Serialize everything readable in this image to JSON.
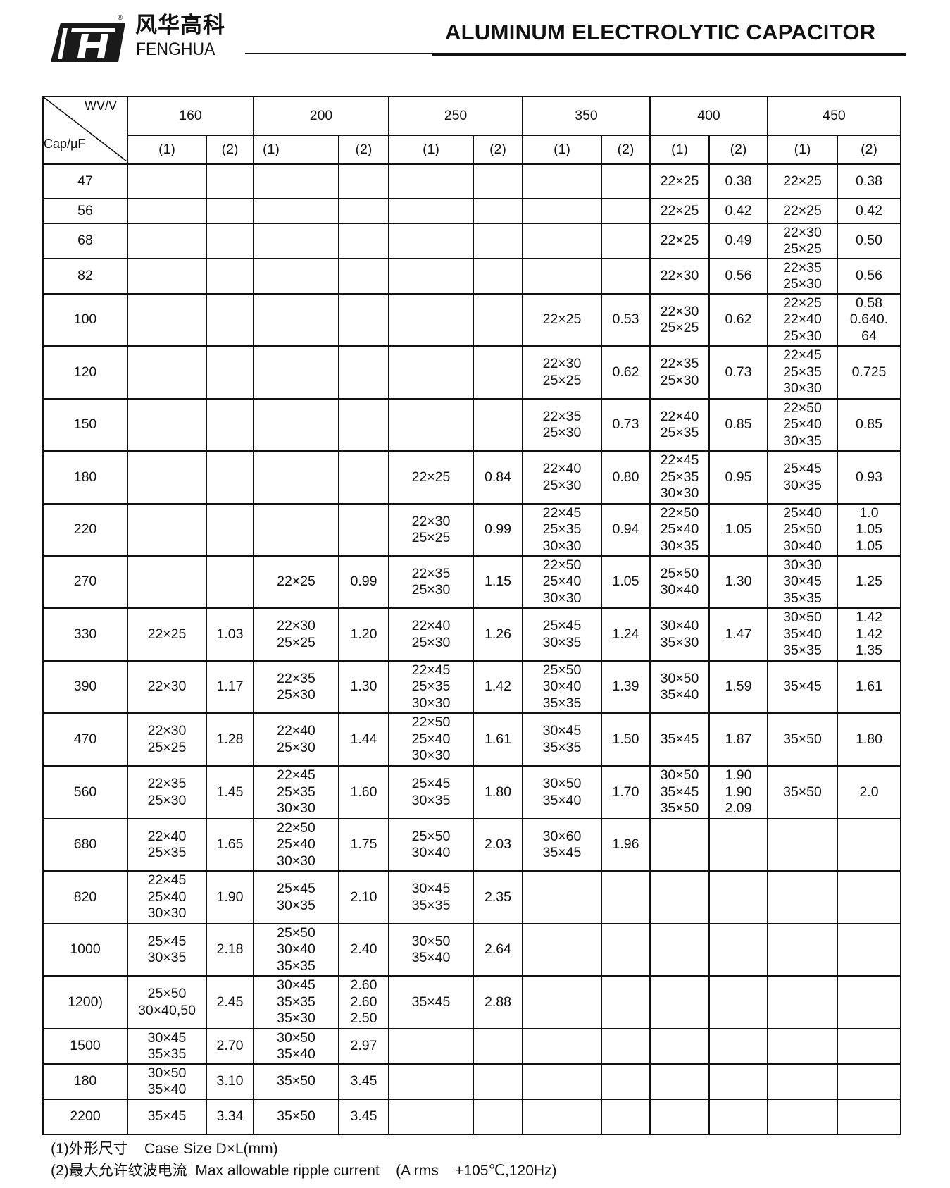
{
  "header": {
    "brand_cn": "风华高科",
    "brand_en": "FENGHUA",
    "registered_mark": "®",
    "title": "ALUMINUM ELECTROLYTIC CAPACITOR"
  },
  "table": {
    "corner_top": "WV/V",
    "corner_bottom": "Cap/μF",
    "voltages": [
      "160",
      "200",
      "250",
      "350",
      "400",
      "450"
    ],
    "sub_headers": [
      "(1)",
      "(2)"
    ],
    "rows": [
      {
        "cap": "47",
        "cells": [
          "",
          "",
          "",
          "",
          "",
          "",
          "",
          "",
          "22×25",
          "0.38",
          "22×25",
          "0.38"
        ]
      },
      {
        "cap": "56",
        "cells": [
          "",
          "",
          "",
          "",
          "",
          "",
          "",
          "",
          "22×25",
          "0.42",
          "22×25",
          "0.42"
        ]
      },
      {
        "cap": "68",
        "cells": [
          "",
          "",
          "",
          "",
          "",
          "",
          "",
          "",
          "22×25",
          "0.49",
          "22×30\n25×25",
          "0.50"
        ]
      },
      {
        "cap": "82",
        "cells": [
          "",
          "",
          "",
          "",
          "",
          "",
          "",
          "",
          "22×30",
          "0.56",
          "22×35\n25×30",
          "0.56"
        ]
      },
      {
        "cap": "100",
        "cells": [
          "",
          "",
          "",
          "",
          "",
          "",
          "22×25",
          "0.53",
          "22×30\n25×25",
          "0.62",
          "22×25\n22×40\n25×30",
          "0.58\n0.640.\n64"
        ]
      },
      {
        "cap": "120",
        "cells": [
          "",
          "",
          "",
          "",
          "",
          "",
          "22×30\n25×25",
          "0.62",
          "22×35\n25×30",
          "0.73",
          "22×45\n25×35\n30×30",
          "0.725"
        ]
      },
      {
        "cap": "150",
        "cells": [
          "",
          "",
          "",
          "",
          "",
          "",
          "22×35\n25×30",
          "0.73",
          "22×40\n25×35",
          "0.85",
          "22×50\n25×40\n30×35",
          "0.85"
        ]
      },
      {
        "cap": "180",
        "cells": [
          "",
          "",
          "",
          "",
          "22×25",
          "0.84",
          "22×40\n25×30",
          "0.80",
          "22×45\n25×35\n30×30",
          "0.95",
          "25×45\n30×35",
          "0.93"
        ]
      },
      {
        "cap": "220",
        "cells": [
          "",
          "",
          "",
          "",
          "22×30\n25×25",
          "0.99",
          "22×45\n25×35\n30×30",
          "0.94",
          "22×50\n25×40\n30×35",
          "1.05",
          "25×40\n25×50\n30×40",
          "1.0\n1.05\n1.05"
        ]
      },
      {
        "cap": "270",
        "cells": [
          "",
          "",
          "22×25",
          "0.99",
          "22×35\n25×30",
          "1.15",
          "22×50\n25×40\n30×30",
          "1.05",
          "25×50\n30×40",
          "1.30",
          "30×30\n30×45\n35×35",
          "1.25"
        ]
      },
      {
        "cap": "330",
        "cells": [
          "22×25",
          "1.03",
          "22×30\n25×25",
          "1.20",
          "22×40\n25×30",
          "1.26",
          "25×45\n30×35",
          "1.24",
          "30×40\n35×30",
          "1.47",
          "30×50\n35×40\n35×35",
          "1.42\n1.42\n1.35"
        ]
      },
      {
        "cap": "390",
        "cells": [
          "22×30",
          "1.17",
          "22×35\n25×30",
          "1.30",
          "22×45\n25×35\n30×30",
          "1.42",
          "25×50\n30×40\n35×35",
          "1.39",
          "30×50\n35×40",
          "1.59",
          "35×45",
          "1.61"
        ]
      },
      {
        "cap": "470",
        "cells": [
          "22×30\n25×25",
          "1.28",
          "22×40\n25×30",
          "1.44",
          "22×50\n25×40\n30×30",
          "1.61",
          "30×45\n35×35",
          "1.50",
          "35×45",
          "1.87",
          "35×50",
          "1.80"
        ]
      },
      {
        "cap": "560",
        "cells": [
          "22×35\n25×30",
          "1.45",
          "22×45\n25×35\n30×30",
          "1.60",
          "25×45\n30×35",
          "1.80",
          "30×50\n35×40",
          "1.70",
          "30×50\n35×45\n35×50",
          "1.90\n1.90\n2.09",
          "35×50",
          "2.0"
        ]
      },
      {
        "cap": "680",
        "cells": [
          "22×40\n25×35",
          "1.65",
          "22×50\n25×40\n30×30",
          "1.75",
          "25×50\n30×40",
          "2.03",
          "30×60\n35×45",
          "1.96",
          "",
          "",
          "",
          ""
        ]
      },
      {
        "cap": "820",
        "cells": [
          "22×45\n25×40\n30×30",
          "1.90",
          "25×45\n30×35",
          "2.10",
          "30×45\n35×35",
          "2.35",
          "",
          "",
          "",
          "",
          "",
          ""
        ]
      },
      {
        "cap": "1000",
        "cells": [
          "25×45\n30×35",
          "2.18",
          "25×50\n30×40\n35×35",
          "2.40",
          "30×50\n35×40",
          "2.64",
          "",
          "",
          "",
          "",
          "",
          ""
        ]
      },
      {
        "cap": "1200)",
        "cells": [
          "25×50\n30×40,50",
          "2.45",
          "30×45\n35×35\n35×30",
          "2.60\n2.60\n2.50",
          "35×45",
          "2.88",
          "",
          "",
          "",
          "",
          "",
          ""
        ]
      },
      {
        "cap": "1500",
        "cells": [
          "30×45\n35×35",
          "2.70",
          "30×50\n35×40",
          "2.97",
          "",
          "",
          "",
          "",
          "",
          "",
          "",
          ""
        ]
      },
      {
        "cap": "180",
        "cells": [
          "30×50\n35×40",
          "3.10",
          "35×50",
          "3.45",
          "",
          "",
          "",
          "",
          "",
          "",
          "",
          ""
        ]
      },
      {
        "cap": "2200",
        "cells": [
          "35×45",
          "3.34",
          "35×50",
          "3.45",
          "",
          "",
          "",
          "",
          "",
          "",
          "",
          ""
        ]
      }
    ]
  },
  "notes": [
    "(1)外形尺寸    Case Size D×L(mm)",
    "(2)最大允许纹波电流  Max allowable ripple current    (A rms    +105℃,120Hz)"
  ]
}
